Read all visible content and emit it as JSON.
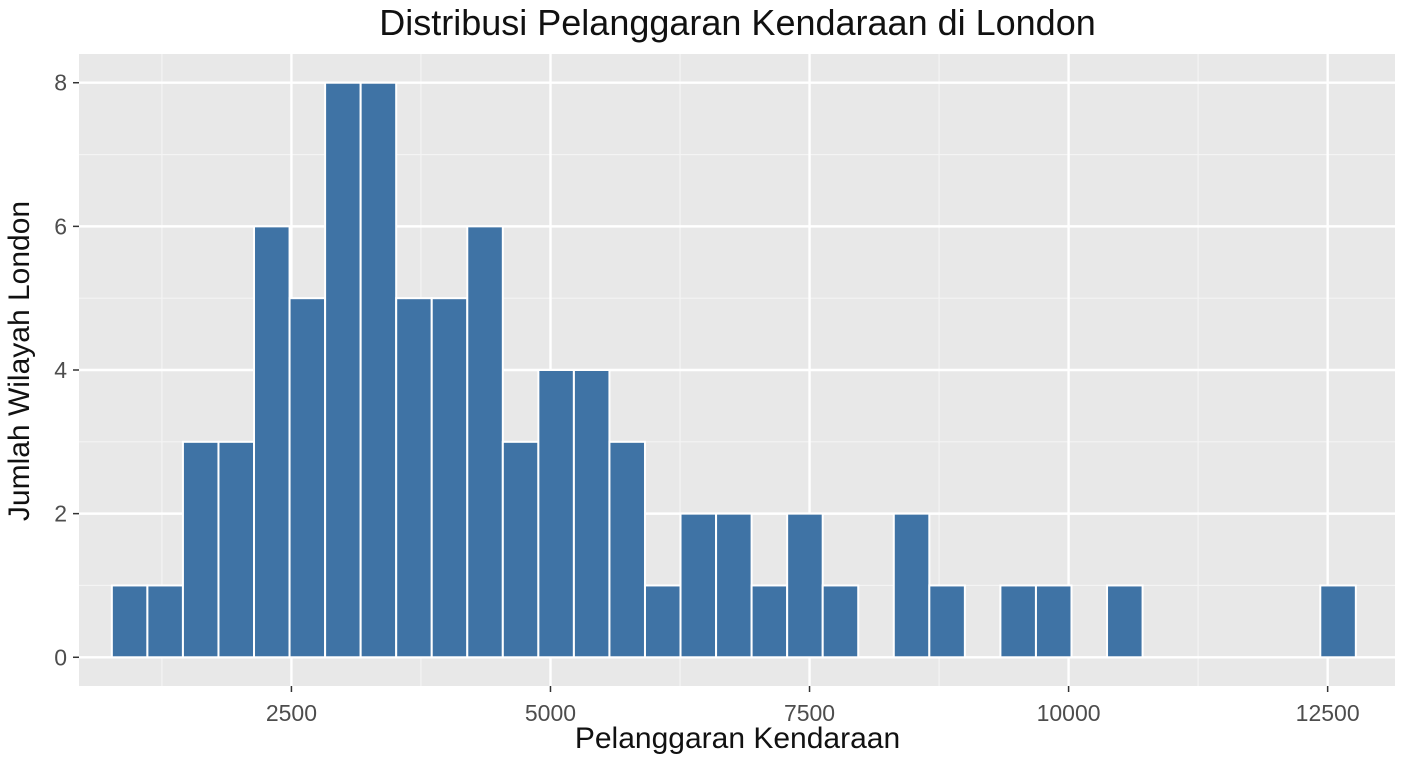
{
  "chart_data": {
    "type": "bar",
    "subtype": "histogram",
    "title": "Distribusi Pelanggaran Kendaraan di London",
    "xlabel": "Pelanggaran Kendaraan",
    "ylabel": "Jumlah Wilayah London",
    "bin_start": 767,
    "bin_width": 343,
    "counts": [
      1,
      1,
      3,
      3,
      6,
      5,
      8,
      8,
      5,
      5,
      6,
      3,
      4,
      4,
      3,
      1,
      2,
      2,
      1,
      2,
      1,
      0,
      2,
      1,
      0,
      1,
      1,
      0,
      1,
      0,
      0,
      0,
      0,
      0,
      1
    ],
    "xticks": [
      2500,
      5000,
      7500,
      10000,
      12500
    ],
    "yticks": [
      0,
      2,
      4,
      6,
      8
    ],
    "xlim": [
      450,
      13150
    ],
    "ylim": [
      -0.4,
      8.4
    ],
    "grid": true,
    "legend": null,
    "bar_color": "#3f73a5",
    "panel_color": "#e8e8e8"
  }
}
